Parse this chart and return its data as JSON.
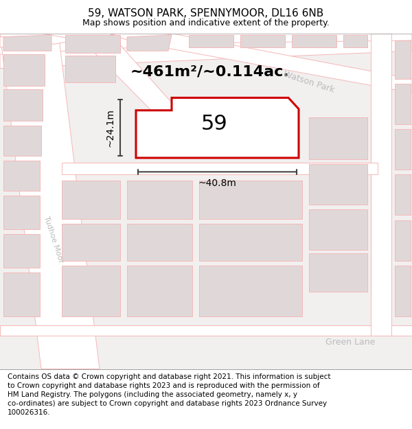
{
  "title": "59, WATSON PARK, SPENNYMOOR, DL16 6NB",
  "subtitle": "Map shows position and indicative extent of the property.",
  "footer": "Contains OS data © Crown copyright and database right 2021. This information is subject\nto Crown copyright and database rights 2023 and is reproduced with the permission of\nHM Land Registry. The polygons (including the associated geometry, namely x, y\nco-ordinates) are subject to Crown copyright and database rights 2023 Ordnance Survey\n100026316.",
  "area_label": "~461m²/~0.114ac.",
  "width_label": "~40.8m",
  "height_label": "~24.1m",
  "plot_number": "59",
  "map_bg": "#f2efef",
  "road_fill": "#ffffff",
  "road_edge": "#f5b8b8",
  "building_fill": "#e0d8d8",
  "building_edge": "#f5b8b8",
  "plot_edge": "#cc0000",
  "plot_fill": "#ffffff",
  "dim_color": "#444444",
  "street_color": "#bbbbbb",
  "title_fontsize": 11,
  "subtitle_fontsize": 9,
  "footer_fontsize": 7.5,
  "area_fontsize": 16,
  "num_fontsize": 22,
  "dim_fontsize": 10,
  "street_fontsize": 9
}
